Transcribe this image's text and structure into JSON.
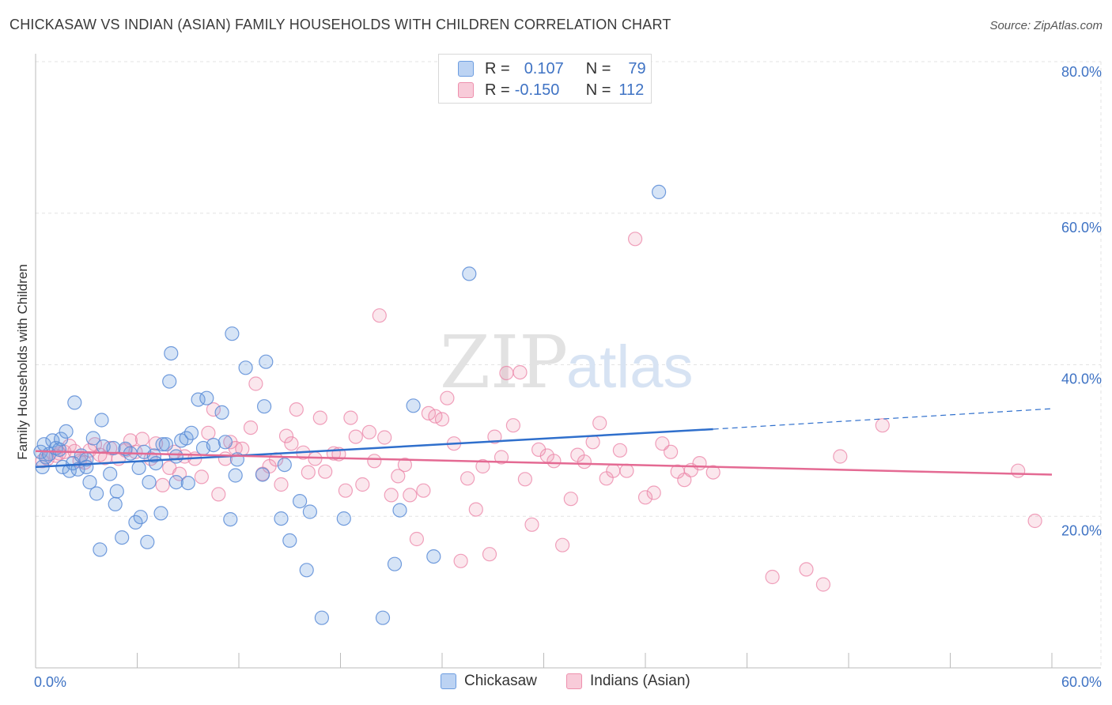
{
  "header": {
    "title": "CHICKASAW VS INDIAN (ASIAN) FAMILY HOUSEHOLDS WITH CHILDREN CORRELATION CHART",
    "source": "Source: ZipAtlas.com"
  },
  "watermark": {
    "part1": "ZIP",
    "part2": "atlas"
  },
  "legend": {
    "rows": [
      {
        "r_key": "R =",
        "r_value": "0.107",
        "n_key": "N =",
        "n_value": "79"
      },
      {
        "r_key": "R =",
        "r_value": "-0.150",
        "n_key": "N =",
        "n_value": "112"
      }
    ]
  },
  "chart_data": {
    "type": "scatter",
    "title": "CHICKASAW VS INDIAN (ASIAN) FAMILY HOUSEHOLDS WITH CHILDREN CORRELATION CHART",
    "xlabel": "",
    "ylabel": "Family Households with Children",
    "xlim": [
      0,
      60
    ],
    "ylim": [
      0,
      80
    ],
    "x_tick_labels": [
      "0.0%",
      "60.0%"
    ],
    "y_tick_labels": [
      "80.0%",
      "60.0%",
      "40.0%",
      "20.0%"
    ],
    "y_ticks": [
      80,
      60,
      40,
      20
    ],
    "grid": true,
    "legend_position": "top-center",
    "colors": {
      "chickasaw": "#6d9de0",
      "indians": "#ee90ad",
      "chickasaw_line": "#2f6fcc",
      "indians_line": "#e46a93",
      "tick_label": "#3f73c4"
    },
    "series": [
      {
        "name": "Chickasaw",
        "trend": {
          "x": [
            0,
            40
          ],
          "y": [
            26.5,
            31.5
          ],
          "dashed_to_x": 60,
          "dashed_to_y": 34.2
        },
        "points": [
          [
            0.3,
            28.5
          ],
          [
            0.5,
            29.5
          ],
          [
            0.6,
            27.8
          ],
          [
            0.8,
            28.2
          ],
          [
            1.0,
            30.0
          ],
          [
            1.2,
            29.0
          ],
          [
            1.4,
            28.8
          ],
          [
            1.5,
            30.2
          ],
          [
            1.6,
            26.5
          ],
          [
            1.8,
            31.2
          ],
          [
            2.0,
            26.0
          ],
          [
            2.2,
            27.0
          ],
          [
            2.3,
            35.0
          ],
          [
            2.5,
            26.2
          ],
          [
            2.7,
            28.0
          ],
          [
            3.0,
            27.5
          ],
          [
            3.0,
            26.5
          ],
          [
            3.2,
            24.5
          ],
          [
            3.4,
            30.3
          ],
          [
            3.6,
            23.0
          ],
          [
            3.8,
            15.6
          ],
          [
            3.9,
            32.7
          ],
          [
            4.0,
            29.2
          ],
          [
            4.4,
            25.6
          ],
          [
            4.6,
            29.0
          ],
          [
            4.7,
            21.6
          ],
          [
            4.8,
            23.3
          ],
          [
            5.1,
            17.2
          ],
          [
            5.3,
            28.9
          ],
          [
            5.6,
            28.3
          ],
          [
            5.9,
            19.2
          ],
          [
            6.1,
            26.4
          ],
          [
            6.2,
            19.9
          ],
          [
            6.4,
            28.5
          ],
          [
            6.6,
            16.6
          ],
          [
            6.7,
            24.5
          ],
          [
            7.0,
            28.0
          ],
          [
            7.1,
            27.0
          ],
          [
            7.4,
            20.4
          ],
          [
            7.5,
            29.5
          ],
          [
            7.7,
            29.5
          ],
          [
            7.9,
            37.8
          ],
          [
            8.0,
            41.5
          ],
          [
            8.3,
            27.9
          ],
          [
            8.3,
            24.5
          ],
          [
            8.6,
            30.0
          ],
          [
            8.9,
            30.3
          ],
          [
            9.0,
            24.4
          ],
          [
            9.2,
            31.0
          ],
          [
            9.6,
            35.4
          ],
          [
            9.9,
            29.0
          ],
          [
            10.1,
            35.6
          ],
          [
            10.5,
            29.4
          ],
          [
            11.0,
            33.7
          ],
          [
            11.2,
            29.8
          ],
          [
            11.5,
            19.6
          ],
          [
            11.6,
            44.1
          ],
          [
            11.8,
            25.4
          ],
          [
            11.9,
            27.5
          ],
          [
            12.4,
            39.6
          ],
          [
            13.4,
            25.5
          ],
          [
            13.5,
            34.5
          ],
          [
            13.6,
            40.4
          ],
          [
            14.5,
            19.7
          ],
          [
            14.7,
            26.8
          ],
          [
            15.0,
            16.8
          ],
          [
            15.6,
            22.0
          ],
          [
            16.0,
            12.9
          ],
          [
            16.2,
            20.6
          ],
          [
            18.2,
            19.7
          ],
          [
            20.5,
            6.6
          ],
          [
            21.2,
            13.7
          ],
          [
            21.5,
            20.8
          ],
          [
            22.3,
            34.6
          ],
          [
            23.5,
            14.7
          ],
          [
            25.6,
            52.0
          ],
          [
            16.9,
            6.6
          ],
          [
            36.8,
            62.8
          ],
          [
            0.4,
            26.5
          ]
        ]
      },
      {
        "name": "Indians (Asian)",
        "trend": {
          "x": [
            0,
            60
          ],
          "y": [
            28.6,
            25.5
          ]
        },
        "points": [
          [
            0.4,
            27.3
          ],
          [
            0.7,
            27.6
          ],
          [
            1.2,
            28.0
          ],
          [
            1.4,
            28.3
          ],
          [
            1.7,
            28.5
          ],
          [
            2.0,
            29.3
          ],
          [
            2.3,
            28.6
          ],
          [
            2.6,
            27.3
          ],
          [
            2.9,
            27.1
          ],
          [
            3.2,
            28.7
          ],
          [
            3.5,
            29.5
          ],
          [
            3.8,
            28.1
          ],
          [
            4.1,
            27.7
          ],
          [
            4.4,
            29.0
          ],
          [
            4.9,
            27.6
          ],
          [
            5.3,
            28.7
          ],
          [
            5.6,
            30.0
          ],
          [
            5.9,
            28.5
          ],
          [
            6.3,
            30.2
          ],
          [
            6.8,
            27.6
          ],
          [
            7.1,
            29.6
          ],
          [
            7.5,
            24.1
          ],
          [
            7.9,
            26.4
          ],
          [
            8.2,
            28.5
          ],
          [
            8.5,
            25.6
          ],
          [
            8.8,
            27.9
          ],
          [
            9.4,
            27.6
          ],
          [
            9.8,
            25.2
          ],
          [
            10.2,
            31.0
          ],
          [
            10.5,
            34.1
          ],
          [
            10.8,
            22.9
          ],
          [
            11.2,
            27.6
          ],
          [
            11.5,
            29.8
          ],
          [
            11.8,
            29.0
          ],
          [
            12.2,
            28.9
          ],
          [
            12.7,
            31.7
          ],
          [
            13.0,
            37.5
          ],
          [
            13.4,
            25.6
          ],
          [
            13.8,
            26.6
          ],
          [
            14.2,
            27.5
          ],
          [
            14.5,
            24.2
          ],
          [
            14.8,
            30.6
          ],
          [
            15.1,
            29.6
          ],
          [
            15.4,
            34.1
          ],
          [
            15.8,
            28.4
          ],
          [
            16.1,
            25.8
          ],
          [
            16.5,
            27.6
          ],
          [
            16.8,
            33.0
          ],
          [
            17.1,
            25.9
          ],
          [
            17.6,
            28.3
          ],
          [
            17.9,
            28.2
          ],
          [
            18.3,
            23.4
          ],
          [
            18.6,
            33.0
          ],
          [
            18.9,
            30.5
          ],
          [
            19.3,
            24.2
          ],
          [
            19.7,
            31.1
          ],
          [
            20.0,
            27.3
          ],
          [
            20.3,
            46.5
          ],
          [
            20.6,
            30.4
          ],
          [
            21.0,
            22.8
          ],
          [
            21.4,
            25.3
          ],
          [
            21.8,
            26.8
          ],
          [
            22.1,
            22.8
          ],
          [
            22.5,
            17.0
          ],
          [
            22.9,
            23.4
          ],
          [
            23.2,
            33.6
          ],
          [
            23.6,
            33.2
          ],
          [
            24.0,
            32.8
          ],
          [
            24.3,
            35.6
          ],
          [
            24.7,
            29.6
          ],
          [
            25.1,
            14.1
          ],
          [
            25.5,
            25.0
          ],
          [
            26.0,
            20.9
          ],
          [
            26.4,
            26.6
          ],
          [
            26.8,
            15.0
          ],
          [
            27.1,
            30.5
          ],
          [
            27.5,
            27.8
          ],
          [
            27.8,
            38.9
          ],
          [
            28.2,
            32.0
          ],
          [
            28.6,
            39.0
          ],
          [
            28.9,
            24.9
          ],
          [
            29.3,
            18.9
          ],
          [
            29.7,
            28.8
          ],
          [
            30.2,
            28.0
          ],
          [
            30.6,
            27.3
          ],
          [
            31.1,
            16.2
          ],
          [
            31.6,
            22.3
          ],
          [
            32.0,
            28.1
          ],
          [
            32.4,
            27.2
          ],
          [
            32.9,
            29.8
          ],
          [
            33.3,
            32.3
          ],
          [
            33.7,
            25.0
          ],
          [
            34.1,
            26.0
          ],
          [
            34.5,
            28.7
          ],
          [
            34.9,
            26.0
          ],
          [
            35.4,
            56.6
          ],
          [
            36.0,
            22.5
          ],
          [
            36.5,
            23.1
          ],
          [
            37.0,
            29.6
          ],
          [
            37.5,
            28.5
          ],
          [
            37.9,
            25.9
          ],
          [
            38.3,
            24.8
          ],
          [
            38.7,
            26.1
          ],
          [
            39.2,
            27.0
          ],
          [
            40.0,
            25.8
          ],
          [
            43.5,
            12.0
          ],
          [
            45.5,
            13.0
          ],
          [
            46.5,
            11.0
          ],
          [
            47.5,
            27.9
          ],
          [
            50.0,
            32.0
          ],
          [
            59.0,
            19.4
          ],
          [
            58.0,
            26.0
          ]
        ]
      }
    ]
  },
  "bottom_legend": {
    "items": [
      "Chickasaw",
      "Indians (Asian)"
    ]
  }
}
